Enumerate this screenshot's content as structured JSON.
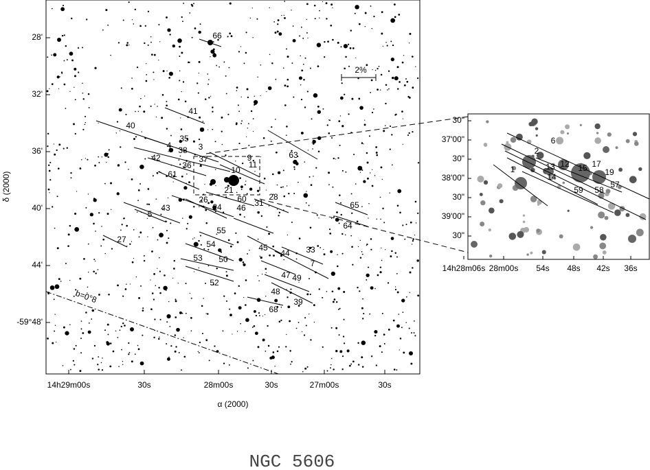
{
  "main": {
    "x_ticks": [
      "14h29m00s",
      "30s",
      "28m00s",
      "30s",
      "27m00s",
      "30s"
    ],
    "y_ticks": [
      "28'",
      "32'",
      "36'",
      "40'",
      "44'",
      "-59°48'"
    ],
    "x_axis_label": "α (2000)",
    "y_axis_label": "δ (2000)",
    "scale_label": "2%",
    "galactic_label": "b=0°8",
    "star_labels": [
      "66",
      "41",
      "40",
      "35",
      "4",
      "38",
      "3",
      "42",
      "37",
      "36",
      "9",
      "11",
      "63",
      "10",
      "61",
      "21",
      "60",
      "26",
      "24",
      "43",
      "5",
      "28",
      "65",
      "31",
      "46",
      "64",
      "27",
      "55",
      "54",
      "45",
      "33",
      "44",
      "50",
      "53",
      "7",
      "47",
      "49",
      "52",
      "48",
      "39",
      "68"
    ]
  },
  "inset": {
    "x_ticks": [
      "14h28m06s",
      "28m00s",
      "54s",
      "48s",
      "42s",
      "36s"
    ],
    "y_ticks": [
      "30\"",
      "37'00\"",
      "30\"",
      "38'00\"",
      "30\"",
      "39'00\"",
      "30\""
    ],
    "star_labels": [
      "6",
      "2",
      "13",
      "12",
      "15",
      "17",
      "19",
      "14",
      "59",
      "58",
      "57",
      "1"
    ]
  },
  "caption": "NGC 5606"
}
